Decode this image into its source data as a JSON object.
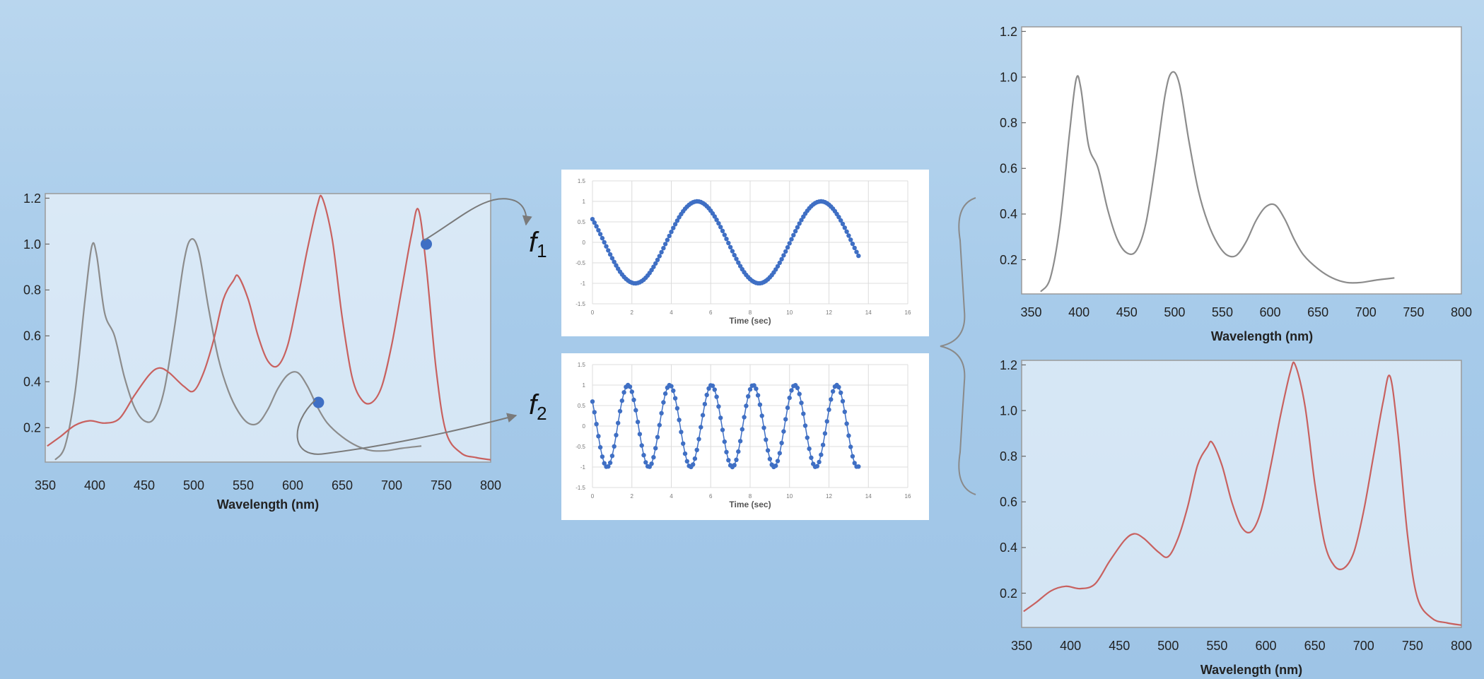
{
  "colors": {
    "background": "#a9cce9",
    "plot_background": "#ffffff",
    "gray_curve": "#8c8c8c",
    "red_curve": "#c8615f",
    "blue_points": "#3f6fc4",
    "connector": "#7a7a7a",
    "axis": "#555555"
  },
  "labels": {
    "f1": "f",
    "f1_sub": "1",
    "f2": "f",
    "f2_sub": "2"
  },
  "chart_data": [
    {
      "id": "combined",
      "type": "line",
      "xlabel": "Wavelength (nm)",
      "ylabel": "",
      "xlim": [
        350,
        800
      ],
      "ylim": [
        0.05,
        1.22
      ],
      "xticks": [
        350,
        400,
        450,
        500,
        550,
        600,
        650,
        700,
        750,
        800
      ],
      "yticks": [
        0.2,
        0.4,
        0.6,
        0.8,
        1.0,
        1.2
      ],
      "ytick_labels": [
        "0.2",
        "0.4",
        "0.6",
        "0.8",
        "1.0",
        "1.2"
      ],
      "grid": false,
      "series": [
        {
          "color": "#8c8c8c",
          "x": [
            360,
            370,
            380,
            390,
            397,
            402,
            410,
            420,
            430,
            440,
            450,
            460,
            470,
            480,
            490,
            497,
            505,
            515,
            525,
            535,
            545,
            555,
            565,
            575,
            585,
            595,
            605,
            615,
            625,
            635,
            650,
            665,
            680,
            695,
            710,
            730
          ],
          "y": [
            0.06,
            0.12,
            0.35,
            0.75,
            0.99,
            0.95,
            0.7,
            0.6,
            0.42,
            0.29,
            0.23,
            0.24,
            0.36,
            0.62,
            0.92,
            1.02,
            0.97,
            0.72,
            0.5,
            0.36,
            0.27,
            0.22,
            0.22,
            0.28,
            0.37,
            0.43,
            0.44,
            0.38,
            0.29,
            0.22,
            0.16,
            0.12,
            0.1,
            0.1,
            0.11,
            0.12
          ]
        },
        {
          "color": "#c8615f",
          "x": [
            352,
            365,
            380,
            395,
            410,
            425,
            440,
            455,
            465,
            475,
            490,
            500,
            510,
            520,
            530,
            540,
            545,
            555,
            565,
            575,
            585,
            595,
            605,
            615,
            625,
            630,
            640,
            650,
            660,
            670,
            680,
            690,
            700,
            710,
            720,
            727,
            735,
            745,
            755,
            770,
            785,
            800
          ],
          "y": [
            0.12,
            0.16,
            0.21,
            0.23,
            0.22,
            0.24,
            0.34,
            0.43,
            0.46,
            0.44,
            0.38,
            0.36,
            0.44,
            0.58,
            0.76,
            0.84,
            0.86,
            0.76,
            0.6,
            0.49,
            0.47,
            0.56,
            0.76,
            0.98,
            1.17,
            1.2,
            1.02,
            0.68,
            0.42,
            0.32,
            0.31,
            0.38,
            0.56,
            0.8,
            1.04,
            1.15,
            0.9,
            0.45,
            0.18,
            0.09,
            0.07,
            0.06
          ]
        }
      ],
      "annotations": [
        {
          "x": 735,
          "y": 1.0
        },
        {
          "x": 626,
          "y": 0.31
        }
      ]
    },
    {
      "id": "f1",
      "type": "scatter",
      "xlabel": "Time (sec)",
      "xlim": [
        0,
        16
      ],
      "ylim": [
        -1.5,
        1.5
      ],
      "xticks": [
        0,
        2,
        4,
        6,
        8,
        10,
        12,
        14,
        16
      ],
      "yticks": [
        -1.5,
        -1,
        -0.5,
        0,
        0.5,
        1,
        1.5
      ],
      "grid": true,
      "series": [
        {
          "color": "#3f6fc4",
          "amplitude": 1,
          "frequency": 0.1592,
          "phase": 2.54,
          "t_start": 0,
          "t_end": 13.5,
          "t_step": 0.1
        }
      ]
    },
    {
      "id": "f2",
      "type": "scatter",
      "xlabel": "Time (sec)",
      "xlim": [
        0,
        16
      ],
      "ylim": [
        -1.5,
        1.5
      ],
      "xticks": [
        0,
        2,
        4,
        6,
        8,
        10,
        12,
        14,
        16
      ],
      "yticks": [
        -1.5,
        -1,
        -0.5,
        0,
        0.5,
        1,
        1.5
      ],
      "grid": true,
      "series": [
        {
          "color": "#3f6fc4",
          "amplitude": 1,
          "frequency": 0.4723,
          "phase": 2.5,
          "t_start": 0,
          "t_end": 13.5,
          "t_step": 0.1
        }
      ]
    },
    {
      "id": "gray",
      "type": "line",
      "xlabel": "Wavelength (nm)",
      "xlim": [
        340,
        800
      ],
      "ylim": [
        0.05,
        1.22
      ],
      "xticks": [
        350,
        400,
        450,
        500,
        550,
        600,
        650,
        700,
        750,
        800
      ],
      "yticks": [
        0.2,
        0.4,
        0.6,
        0.8,
        1.0,
        1.2
      ],
      "ytick_labels": [
        "0.2",
        "0.4",
        "0.6",
        "0.8",
        "1.0",
        "1.2"
      ],
      "grid": false,
      "series": [
        {
          "color": "#8c8c8c",
          "x": [
            360,
            370,
            380,
            390,
            397,
            402,
            410,
            420,
            430,
            440,
            450,
            460,
            470,
            480,
            490,
            497,
            505,
            515,
            525,
            535,
            545,
            555,
            565,
            575,
            585,
            595,
            605,
            615,
            625,
            635,
            650,
            665,
            680,
            695,
            710,
            730
          ],
          "y": [
            0.06,
            0.12,
            0.35,
            0.75,
            0.99,
            0.95,
            0.7,
            0.6,
            0.42,
            0.29,
            0.23,
            0.24,
            0.36,
            0.62,
            0.92,
            1.02,
            0.97,
            0.72,
            0.5,
            0.36,
            0.27,
            0.22,
            0.22,
            0.28,
            0.37,
            0.43,
            0.44,
            0.38,
            0.29,
            0.22,
            0.16,
            0.12,
            0.1,
            0.1,
            0.11,
            0.12
          ]
        }
      ]
    },
    {
      "id": "red",
      "type": "line",
      "xlabel": "Wavelength (nm)",
      "xlim": [
        350,
        800
      ],
      "ylim": [
        0.05,
        1.22
      ],
      "xticks": [
        350,
        400,
        450,
        500,
        550,
        600,
        650,
        700,
        750,
        800
      ],
      "yticks": [
        0.2,
        0.4,
        0.6,
        0.8,
        1.0,
        1.2
      ],
      "ytick_labels": [
        "0.2",
        "0.4",
        "0.6",
        "0.8",
        "1.0",
        "1.2"
      ],
      "grid": false,
      "series": [
        {
          "color": "#c8615f",
          "x": [
            352,
            365,
            380,
            395,
            410,
            425,
            440,
            455,
            465,
            475,
            490,
            500,
            510,
            520,
            530,
            540,
            545,
            555,
            565,
            575,
            585,
            595,
            605,
            615,
            625,
            630,
            640,
            650,
            660,
            670,
            680,
            690,
            700,
            710,
            720,
            727,
            735,
            745,
            755,
            770,
            785,
            800
          ],
          "y": [
            0.12,
            0.16,
            0.21,
            0.23,
            0.22,
            0.24,
            0.34,
            0.43,
            0.46,
            0.44,
            0.38,
            0.36,
            0.44,
            0.58,
            0.76,
            0.84,
            0.86,
            0.76,
            0.6,
            0.49,
            0.47,
            0.56,
            0.76,
            0.98,
            1.17,
            1.2,
            1.02,
            0.68,
            0.42,
            0.32,
            0.31,
            0.38,
            0.56,
            0.8,
            1.04,
            1.15,
            0.9,
            0.45,
            0.18,
            0.09,
            0.07,
            0.06
          ]
        }
      ]
    }
  ]
}
